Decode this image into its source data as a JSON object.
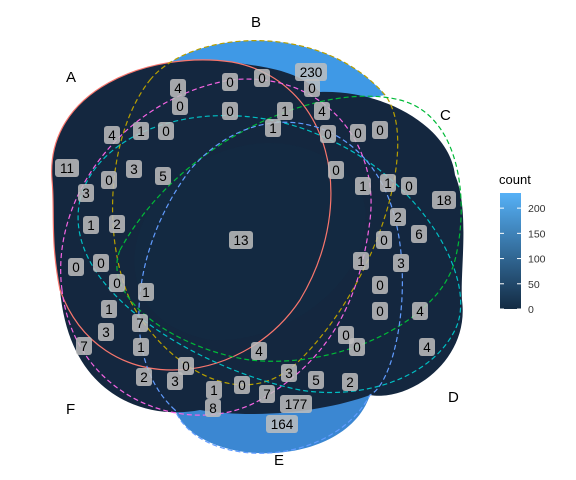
{
  "chart_data": {
    "type": "venn",
    "sets": [
      "A",
      "B",
      "C",
      "D",
      "E",
      "F"
    ],
    "colors": {
      "fill_low": "#132B43",
      "fill_high": "#56B1F7",
      "outline": [
        "#F8766D",
        "#B79F00",
        "#00BA38",
        "#00BFC4",
        "#619CFF",
        "#F564E3"
      ],
      "label_box": "#BEBEBE"
    },
    "legend": {
      "title": "count",
      "position": "right",
      "range": [
        0,
        230
      ],
      "ticks": [
        "0",
        "50",
        "100",
        "150",
        "200"
      ]
    },
    "cells": [
      {
        "sets": [
          "B"
        ],
        "count": 230
      },
      {
        "sets": [
          "E"
        ],
        "count": 164
      },
      {
        "sets": [
          "D",
          "E"
        ],
        "count": 177
      },
      {
        "sets": [
          "A",
          "B",
          "C",
          "D",
          "E",
          "F"
        ],
        "count": 13
      },
      {
        "sets": [
          "A"
        ],
        "count": 11
      },
      {
        "sets": [
          "C"
        ],
        "count": 18
      },
      {
        "sets": [
          "D"
        ],
        "count": 4
      },
      {
        "sets": [
          "F"
        ],
        "count": 7
      },
      {
        "count": 4
      },
      {
        "count": 0
      },
      {
        "count": 0
      },
      {
        "count": 0
      },
      {
        "count": 0
      },
      {
        "count": 0
      },
      {
        "count": 1
      },
      {
        "count": 4
      },
      {
        "count": 1
      },
      {
        "count": 0
      },
      {
        "count": 4
      },
      {
        "count": 1
      },
      {
        "count": 0
      },
      {
        "count": 0
      },
      {
        "count": 0
      },
      {
        "count": 0
      },
      {
        "count": 3
      },
      {
        "count": 5
      },
      {
        "count": 0
      },
      {
        "count": 1
      },
      {
        "count": 1
      },
      {
        "count": 0
      },
      {
        "count": 3
      },
      {
        "count": 1
      },
      {
        "count": 2
      },
      {
        "count": 2
      },
      {
        "count": 6
      },
      {
        "count": 0
      },
      {
        "count": 1
      },
      {
        "count": 3
      },
      {
        "count": 0
      },
      {
        "count": 0
      },
      {
        "count": 0
      },
      {
        "count": 0
      },
      {
        "count": 1
      },
      {
        "count": 0
      },
      {
        "count": 4
      },
      {
        "count": 1
      },
      {
        "count": 7
      },
      {
        "count": 3
      },
      {
        "count": 1
      },
      {
        "count": 0
      },
      {
        "count": 0
      },
      {
        "count": 4
      },
      {
        "count": 0
      },
      {
        "count": 2
      },
      {
        "count": 3
      },
      {
        "count": 1
      },
      {
        "count": 0
      },
      {
        "count": 3
      },
      {
        "count": 5
      },
      {
        "count": 2
      },
      {
        "count": 7
      },
      {
        "count": 8
      }
    ]
  }
}
